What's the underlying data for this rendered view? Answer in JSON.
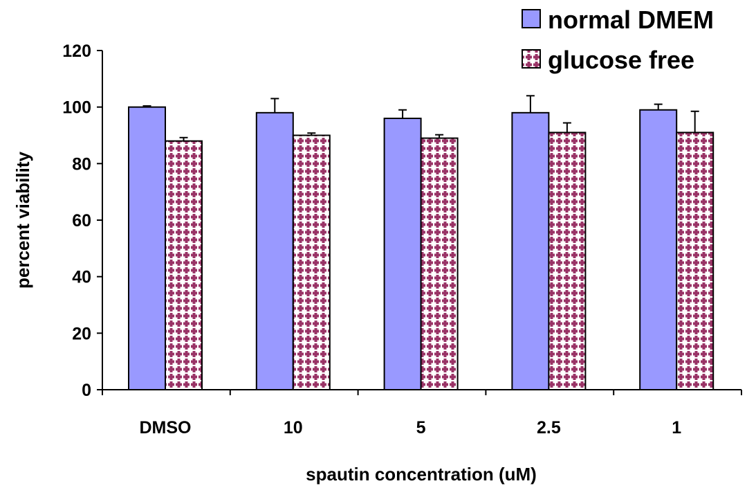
{
  "chart_data": {
    "type": "bar",
    "title": "",
    "xlabel": "spautin concentration (uM)",
    "ylabel": "percent viability",
    "categories": [
      "DMSO",
      "10",
      "5",
      "2.5",
      "1"
    ],
    "ylim": [
      0,
      120
    ],
    "yticks": [
      "0",
      "20",
      "40",
      "60",
      "80",
      "100",
      "120"
    ],
    "grid": false,
    "legend_position": "top-right",
    "series": [
      {
        "name": "normal DMEM",
        "values": [
          100,
          98,
          96,
          98,
          99
        ],
        "error": [
          0.4,
          5,
          3,
          6,
          2
        ],
        "color": "#9999ff",
        "pattern": "solid"
      },
      {
        "name": "glucose free",
        "values": [
          88,
          90,
          89,
          91,
          91
        ],
        "error": [
          1.2,
          0.8,
          1.2,
          3.4,
          7.5
        ],
        "color": "#993366",
        "pattern": "checker-dots"
      }
    ]
  }
}
